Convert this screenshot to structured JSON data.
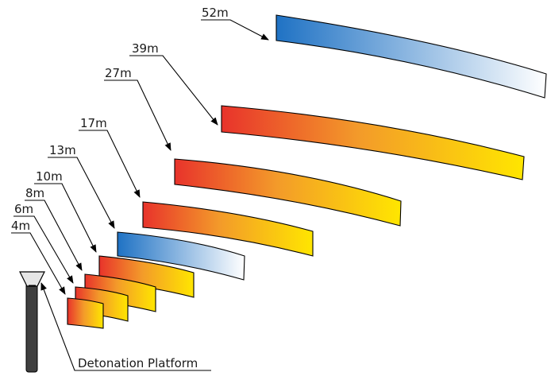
{
  "diagram": {
    "platform_label": "Detonation Platform",
    "distances": [
      {
        "label": "4m",
        "fill": "warm"
      },
      {
        "label": "6m",
        "fill": "warm"
      },
      {
        "label": "8m",
        "fill": "warm"
      },
      {
        "label": "10m",
        "fill": "warm"
      },
      {
        "label": "13m",
        "fill": "cool"
      },
      {
        "label": "17m",
        "fill": "warm"
      },
      {
        "label": "27m",
        "fill": "warm"
      },
      {
        "label": "39m",
        "fill": "warm"
      },
      {
        "label": "52m",
        "fill": "cool"
      }
    ]
  },
  "colors": {
    "warm_start": "#e8332b",
    "warm_mid": "#f39a2a",
    "warm_end": "#ffe600",
    "cool_start": "#1f72c4",
    "cool_end": "#ffffff",
    "platform": "#3f3f3f",
    "platform_cap": "#e6e6e6"
  }
}
